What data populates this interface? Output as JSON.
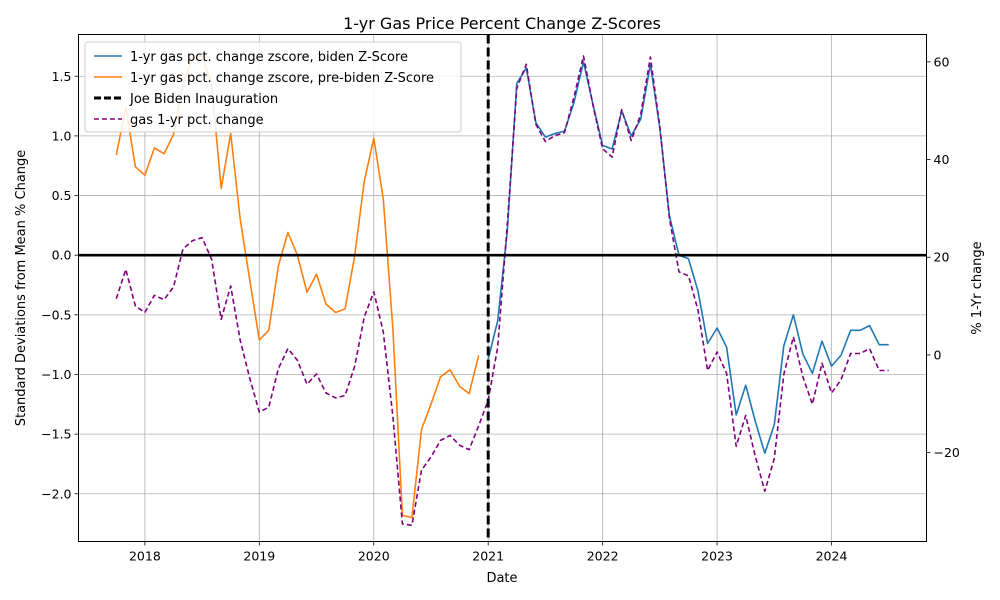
{
  "chart_data": {
    "type": "line",
    "title": "1-yr Gas Price Percent Change Z-Scores",
    "xlabel": "Date",
    "ylabel": "Standard Deviations from Mean % Change",
    "y2label": "% 1-Yr change",
    "xlim": [
      2017.42,
      2024.83
    ],
    "ylim": [
      -2.4,
      1.85
    ],
    "y2lim": [
      -38.2,
      65.6
    ],
    "grid": true,
    "legend_position": "top-left",
    "x_ticks": [
      {
        "value": 2018,
        "label": "2018"
      },
      {
        "value": 2019,
        "label": "2019"
      },
      {
        "value": 2020,
        "label": "2020"
      },
      {
        "value": 2021,
        "label": "2021"
      },
      {
        "value": 2022,
        "label": "2022"
      },
      {
        "value": 2023,
        "label": "2023"
      },
      {
        "value": 2024,
        "label": "2024"
      }
    ],
    "y_ticks": [
      {
        "value": 1.5,
        "label": "1.5"
      },
      {
        "value": 1.0,
        "label": "1.0"
      },
      {
        "value": 0.5,
        "label": "0.5"
      },
      {
        "value": 0.0,
        "label": "0.0"
      },
      {
        "value": -0.5,
        "label": "−0.5"
      },
      {
        "value": -1.0,
        "label": "−1.0"
      },
      {
        "value": -1.5,
        "label": "−1.5"
      },
      {
        "value": -2.0,
        "label": "−2.0"
      }
    ],
    "y2_ticks": [
      {
        "value": 60,
        "label": "60"
      },
      {
        "value": 40,
        "label": "40"
      },
      {
        "value": 20,
        "label": "20"
      },
      {
        "value": 0,
        "label": "0"
      },
      {
        "value": -20,
        "label": "−20"
      }
    ],
    "reference_lines": [
      {
        "name": "Joe Biden Inauguration",
        "axis": "x",
        "value": 2021.0,
        "color": "#000000",
        "style": "dashed"
      },
      {
        "name": "",
        "axis": "y",
        "value": 0.0,
        "color": "#000000",
        "style": "solid"
      }
    ],
    "series": [
      {
        "name": "1-yr gas pct. change zscore, biden Z-Score",
        "axis": "left",
        "color": "#1f77b4",
        "style": "solid",
        "x": [
          2021.0,
          2021.083,
          2021.167,
          2021.25,
          2021.333,
          2021.417,
          2021.5,
          2021.583,
          2021.667,
          2021.75,
          2021.833,
          2021.917,
          2022.0,
          2022.083,
          2022.167,
          2022.25,
          2022.333,
          2022.417,
          2022.5,
          2022.583,
          2022.667,
          2022.75,
          2022.833,
          2022.917,
          2023.0,
          2023.083,
          2023.167,
          2023.25,
          2023.333,
          2023.417,
          2023.5,
          2023.583,
          2023.667,
          2023.75,
          2023.833,
          2023.917,
          2024.0,
          2024.083,
          2024.167,
          2024.25,
          2024.333,
          2024.417,
          2024.5
        ],
        "y": [
          -0.87,
          -0.55,
          0.2,
          1.44,
          1.57,
          1.11,
          0.99,
          1.02,
          1.04,
          1.28,
          1.62,
          1.26,
          0.92,
          0.89,
          1.21,
          1.0,
          1.14,
          1.6,
          1.06,
          0.33,
          0.0,
          -0.03,
          -0.3,
          -0.74,
          -0.61,
          -0.77,
          -1.34,
          -1.09,
          -1.39,
          -1.66,
          -1.42,
          -0.76,
          -0.5,
          -0.83,
          -0.99,
          -0.72,
          -0.93,
          -0.84,
          -0.63,
          -0.63,
          -0.59,
          -0.75,
          -0.75
        ]
      },
      {
        "name": "1-yr gas pct. change zscore, pre-biden Z-Score",
        "axis": "left",
        "color": "#ff7f0e",
        "style": "solid",
        "x": [
          2017.75,
          2017.833,
          2017.917,
          2018.0,
          2018.083,
          2018.167,
          2018.25,
          2018.333,
          2018.417,
          2018.5,
          2018.583,
          2018.667,
          2018.75,
          2018.833,
          2018.917,
          2019.0,
          2019.083,
          2019.167,
          2019.25,
          2019.333,
          2019.417,
          2019.5,
          2019.583,
          2019.667,
          2019.75,
          2019.833,
          2019.917,
          2020.0,
          2020.083,
          2020.167,
          2020.25,
          2020.333,
          2020.417,
          2020.5,
          2020.583,
          2020.667,
          2020.75,
          2020.833,
          2020.917
        ],
        "y": [
          0.84,
          1.24,
          0.74,
          0.67,
          0.9,
          0.85,
          1.01,
          1.44,
          1.65,
          1.67,
          1.43,
          0.56,
          1.02,
          0.3,
          -0.21,
          -0.71,
          -0.63,
          -0.09,
          0.19,
          0.0,
          -0.31,
          -0.16,
          -0.41,
          -0.48,
          -0.45,
          -0.01,
          0.62,
          0.98,
          0.47,
          -0.62,
          -2.18,
          -2.2,
          -1.46,
          -1.25,
          -1.02,
          -0.96,
          -1.1,
          -1.16,
          -0.84
        ]
      },
      {
        "name": "gas 1-yr pct. change",
        "axis": "right",
        "color": "#800080",
        "style": "dashed",
        "x": [
          2017.75,
          2017.833,
          2017.917,
          2018.0,
          2018.083,
          2018.167,
          2018.25,
          2018.333,
          2018.417,
          2018.5,
          2018.583,
          2018.667,
          2018.75,
          2018.833,
          2018.917,
          2019.0,
          2019.083,
          2019.167,
          2019.25,
          2019.333,
          2019.417,
          2019.5,
          2019.583,
          2019.667,
          2019.75,
          2019.833,
          2019.917,
          2020.0,
          2020.083,
          2020.167,
          2020.25,
          2020.333,
          2020.417,
          2020.5,
          2020.583,
          2020.667,
          2020.75,
          2020.833,
          2020.917,
          2021.0,
          2021.083,
          2021.167,
          2021.25,
          2021.333,
          2021.417,
          2021.5,
          2021.583,
          2021.667,
          2021.75,
          2021.833,
          2021.917,
          2022.0,
          2022.083,
          2022.167,
          2022.25,
          2022.333,
          2022.417,
          2022.5,
          2022.583,
          2022.667,
          2022.75,
          2022.833,
          2022.917,
          2023.0,
          2023.083,
          2023.167,
          2023.25,
          2023.333,
          2023.417,
          2023.5,
          2023.583,
          2023.667,
          2023.75,
          2023.833,
          2023.917,
          2024.0,
          2024.083,
          2024.167,
          2024.25,
          2024.333,
          2024.417,
          2024.5
        ],
        "y": [
          11.5,
          17.5,
          10.0,
          8.7,
          12.2,
          11.3,
          13.9,
          21.7,
          23.4,
          24.0,
          19.6,
          7.3,
          14.1,
          3.0,
          -4.8,
          -11.7,
          -10.7,
          -2.8,
          1.3,
          -1.1,
          -6.0,
          -3.9,
          -7.8,
          -8.8,
          -8.3,
          -2.4,
          7.8,
          12.9,
          4.7,
          -12.6,
          -34.6,
          -34.9,
          -23.6,
          -20.9,
          -17.5,
          -16.5,
          -18.5,
          -19.4,
          -14.5,
          -9.3,
          1.6,
          26.7,
          54.6,
          59.5,
          47.2,
          43.7,
          44.9,
          45.5,
          52.8,
          61.2,
          51.0,
          42.2,
          40.5,
          50.2,
          43.9,
          49.2,
          61.0,
          46.6,
          28.0,
          17.0,
          16.2,
          9.2,
          -3.2,
          0.6,
          -3.8,
          -18.7,
          -12.4,
          -20.7,
          -27.9,
          -21.2,
          -4.0,
          3.7,
          -4.5,
          -10.1,
          -1.7,
          -7.8,
          -5.1,
          0.3,
          0.3,
          1.3,
          -3.2,
          -3.2
        ]
      }
    ]
  }
}
